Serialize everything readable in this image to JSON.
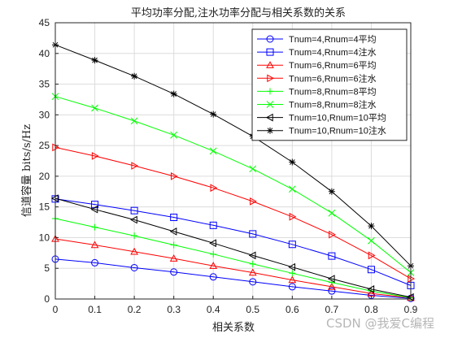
{
  "chart_data": {
    "type": "line",
    "title": "平均功率分配,注水功率分配与相关系数的关系",
    "xlabel": "相关系数",
    "ylabel": "信道容量 bits/s/Hz",
    "xlim": [
      0,
      0.9
    ],
    "ylim": [
      0,
      45
    ],
    "x_ticks": [
      "0",
      "0.1",
      "0.2",
      "0.3",
      "0.4",
      "0.5",
      "0.6",
      "0.7",
      "0.8",
      "0.9"
    ],
    "y_ticks": [
      "0",
      "5",
      "10",
      "15",
      "20",
      "25",
      "30",
      "35",
      "40",
      "45"
    ],
    "grid": true,
    "legend_position": "top-right",
    "x": [
      0,
      0.1,
      0.2,
      0.3,
      0.4,
      0.5,
      0.6,
      0.7,
      0.8,
      0.9
    ],
    "series": [
      {
        "name": "Tnum=4,Rnum=4平均",
        "color": "#0000ff",
        "marker": "circle",
        "values": [
          6.5,
          5.9,
          5.1,
          4.4,
          3.6,
          2.8,
          2.0,
          1.3,
          0.6,
          0.1
        ]
      },
      {
        "name": "Tnum=4,Rnum=4注水",
        "color": "#0000ff",
        "marker": "square",
        "values": [
          16.3,
          15.4,
          14.4,
          13.3,
          12.0,
          10.6,
          8.9,
          7.0,
          4.8,
          2.2
        ]
      },
      {
        "name": "Tnum=6,Rnum=6平均",
        "color": "#ff0000",
        "marker": "triangle-up",
        "values": [
          9.8,
          8.8,
          7.7,
          6.6,
          5.4,
          4.3,
          3.1,
          2.0,
          0.9,
          0.2
        ]
      },
      {
        "name": "Tnum=6,Rnum=6注水",
        "color": "#ff0000",
        "marker": "triangle-right",
        "values": [
          24.7,
          23.3,
          21.7,
          20.0,
          18.1,
          15.9,
          13.4,
          10.5,
          7.1,
          3.3
        ]
      },
      {
        "name": "Tnum=8,Rnum=8平均",
        "color": "#00ff00",
        "marker": "plus",
        "values": [
          13.1,
          11.7,
          10.3,
          8.8,
          7.3,
          5.7,
          4.2,
          2.7,
          1.3,
          0.2
        ]
      },
      {
        "name": "Tnum=8,Rnum=8注水",
        "color": "#00ff00",
        "marker": "x",
        "values": [
          33.0,
          31.1,
          29.0,
          26.7,
          24.1,
          21.2,
          17.9,
          14.0,
          9.5,
          4.3
        ]
      },
      {
        "name": "Tnum=10,Rnum=10平均",
        "color": "#000000",
        "marker": "triangle-left",
        "values": [
          16.4,
          14.6,
          12.9,
          11.0,
          9.1,
          7.1,
          5.2,
          3.3,
          1.6,
          0.3
        ]
      },
      {
        "name": "Tnum=10,Rnum=10注水",
        "color": "#000000",
        "marker": "star",
        "values": [
          41.4,
          38.9,
          36.3,
          33.4,
          30.1,
          26.5,
          22.3,
          17.5,
          11.9,
          5.4
        ]
      }
    ]
  },
  "watermark": "CSDN @我爱C编程"
}
